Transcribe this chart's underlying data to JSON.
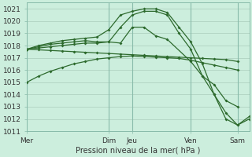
{
  "xlabel": "Pression niveau de la mer( hPa )",
  "background_color": "#cceedd",
  "grid_color": "#aaccbb",
  "line_color": "#2d6a2d",
  "vline_color": "#88bbaa",
  "ylim": [
    1011,
    1021.5
  ],
  "xlim": [
    0,
    9.5
  ],
  "yticks": [
    1011,
    1012,
    1013,
    1014,
    1015,
    1016,
    1017,
    1018,
    1019,
    1020,
    1021
  ],
  "xtick_positions": [
    0,
    3.5,
    4.5,
    7,
    9
  ],
  "xtick_labels": [
    "Mer",
    "Dim",
    "Jeu",
    "Ven",
    "Sam"
  ],
  "vline_positions": [
    0,
    3.5,
    4.5,
    7,
    9
  ],
  "series": [
    {
      "x": [
        0,
        0.5,
        1,
        1.5,
        2,
        2.5,
        3,
        3.5,
        4,
        4.5,
        5,
        5.5,
        6,
        6.5,
        7,
        7.5,
        8,
        8.5,
        9
      ],
      "y": [
        1017.7,
        1017.65,
        1017.6,
        1017.55,
        1017.5,
        1017.45,
        1017.4,
        1017.35,
        1017.3,
        1017.25,
        1017.2,
        1017.15,
        1017.1,
        1017.05,
        1017.0,
        1016.95,
        1016.9,
        1016.85,
        1016.7
      ]
    },
    {
      "x": [
        0,
        0.5,
        1,
        1.5,
        2,
        2.5,
        3,
        3.5,
        4,
        4.5,
        5,
        5.5,
        6,
        6.5,
        7,
        7.5,
        8,
        8.5,
        9
      ],
      "y": [
        1015.0,
        1015.5,
        1015.9,
        1016.2,
        1016.5,
        1016.7,
        1016.9,
        1017.0,
        1017.1,
        1017.15,
        1017.1,
        1017.05,
        1017.0,
        1016.95,
        1016.8,
        1016.6,
        1016.4,
        1016.2,
        1016.0
      ]
    },
    {
      "x": [
        0,
        0.5,
        1,
        1.5,
        2,
        2.5,
        3,
        3.5,
        4,
        4.5,
        5,
        5.5,
        6,
        7,
        7.5,
        8,
        8.5,
        9
      ],
      "y": [
        1017.7,
        1017.8,
        1017.9,
        1018.0,
        1018.1,
        1018.2,
        1018.2,
        1018.3,
        1018.2,
        1019.5,
        1019.5,
        1018.8,
        1018.5,
        1016.7,
        1015.5,
        1014.8,
        1013.5,
        1013.0
      ]
    },
    {
      "x": [
        0,
        0.5,
        1,
        1.5,
        2,
        2.5,
        3,
        3.5,
        4,
        4.5,
        5,
        5.5,
        6,
        6.5,
        7,
        7.5,
        8,
        8.5,
        9,
        9.5
      ],
      "y": [
        1017.7,
        1017.9,
        1018.1,
        1018.2,
        1018.3,
        1018.4,
        1018.3,
        1018.3,
        1019.5,
        1020.5,
        1020.8,
        1020.8,
        1020.5,
        1019.0,
        1017.7,
        1015.5,
        1014.0,
        1012.5,
        1011.5,
        1012.0
      ]
    },
    {
      "x": [
        0,
        0.5,
        1,
        1.5,
        2,
        2.5,
        3,
        3.5,
        4,
        4.5,
        5,
        5.5,
        6,
        6.5,
        7,
        7.5,
        8,
        8.5,
        9,
        9.5
      ],
      "y": [
        1017.7,
        1018.0,
        1018.2,
        1018.4,
        1018.5,
        1018.6,
        1018.7,
        1019.3,
        1020.5,
        1020.8,
        1021.0,
        1021.0,
        1020.7,
        1019.5,
        1018.3,
        1016.5,
        1014.0,
        1012.0,
        1011.5,
        1012.2
      ]
    }
  ],
  "marker_size": 2.0,
  "linewidth": 0.9,
  "xlabel_fontsize": 7,
  "tick_fontsize": 6.5
}
